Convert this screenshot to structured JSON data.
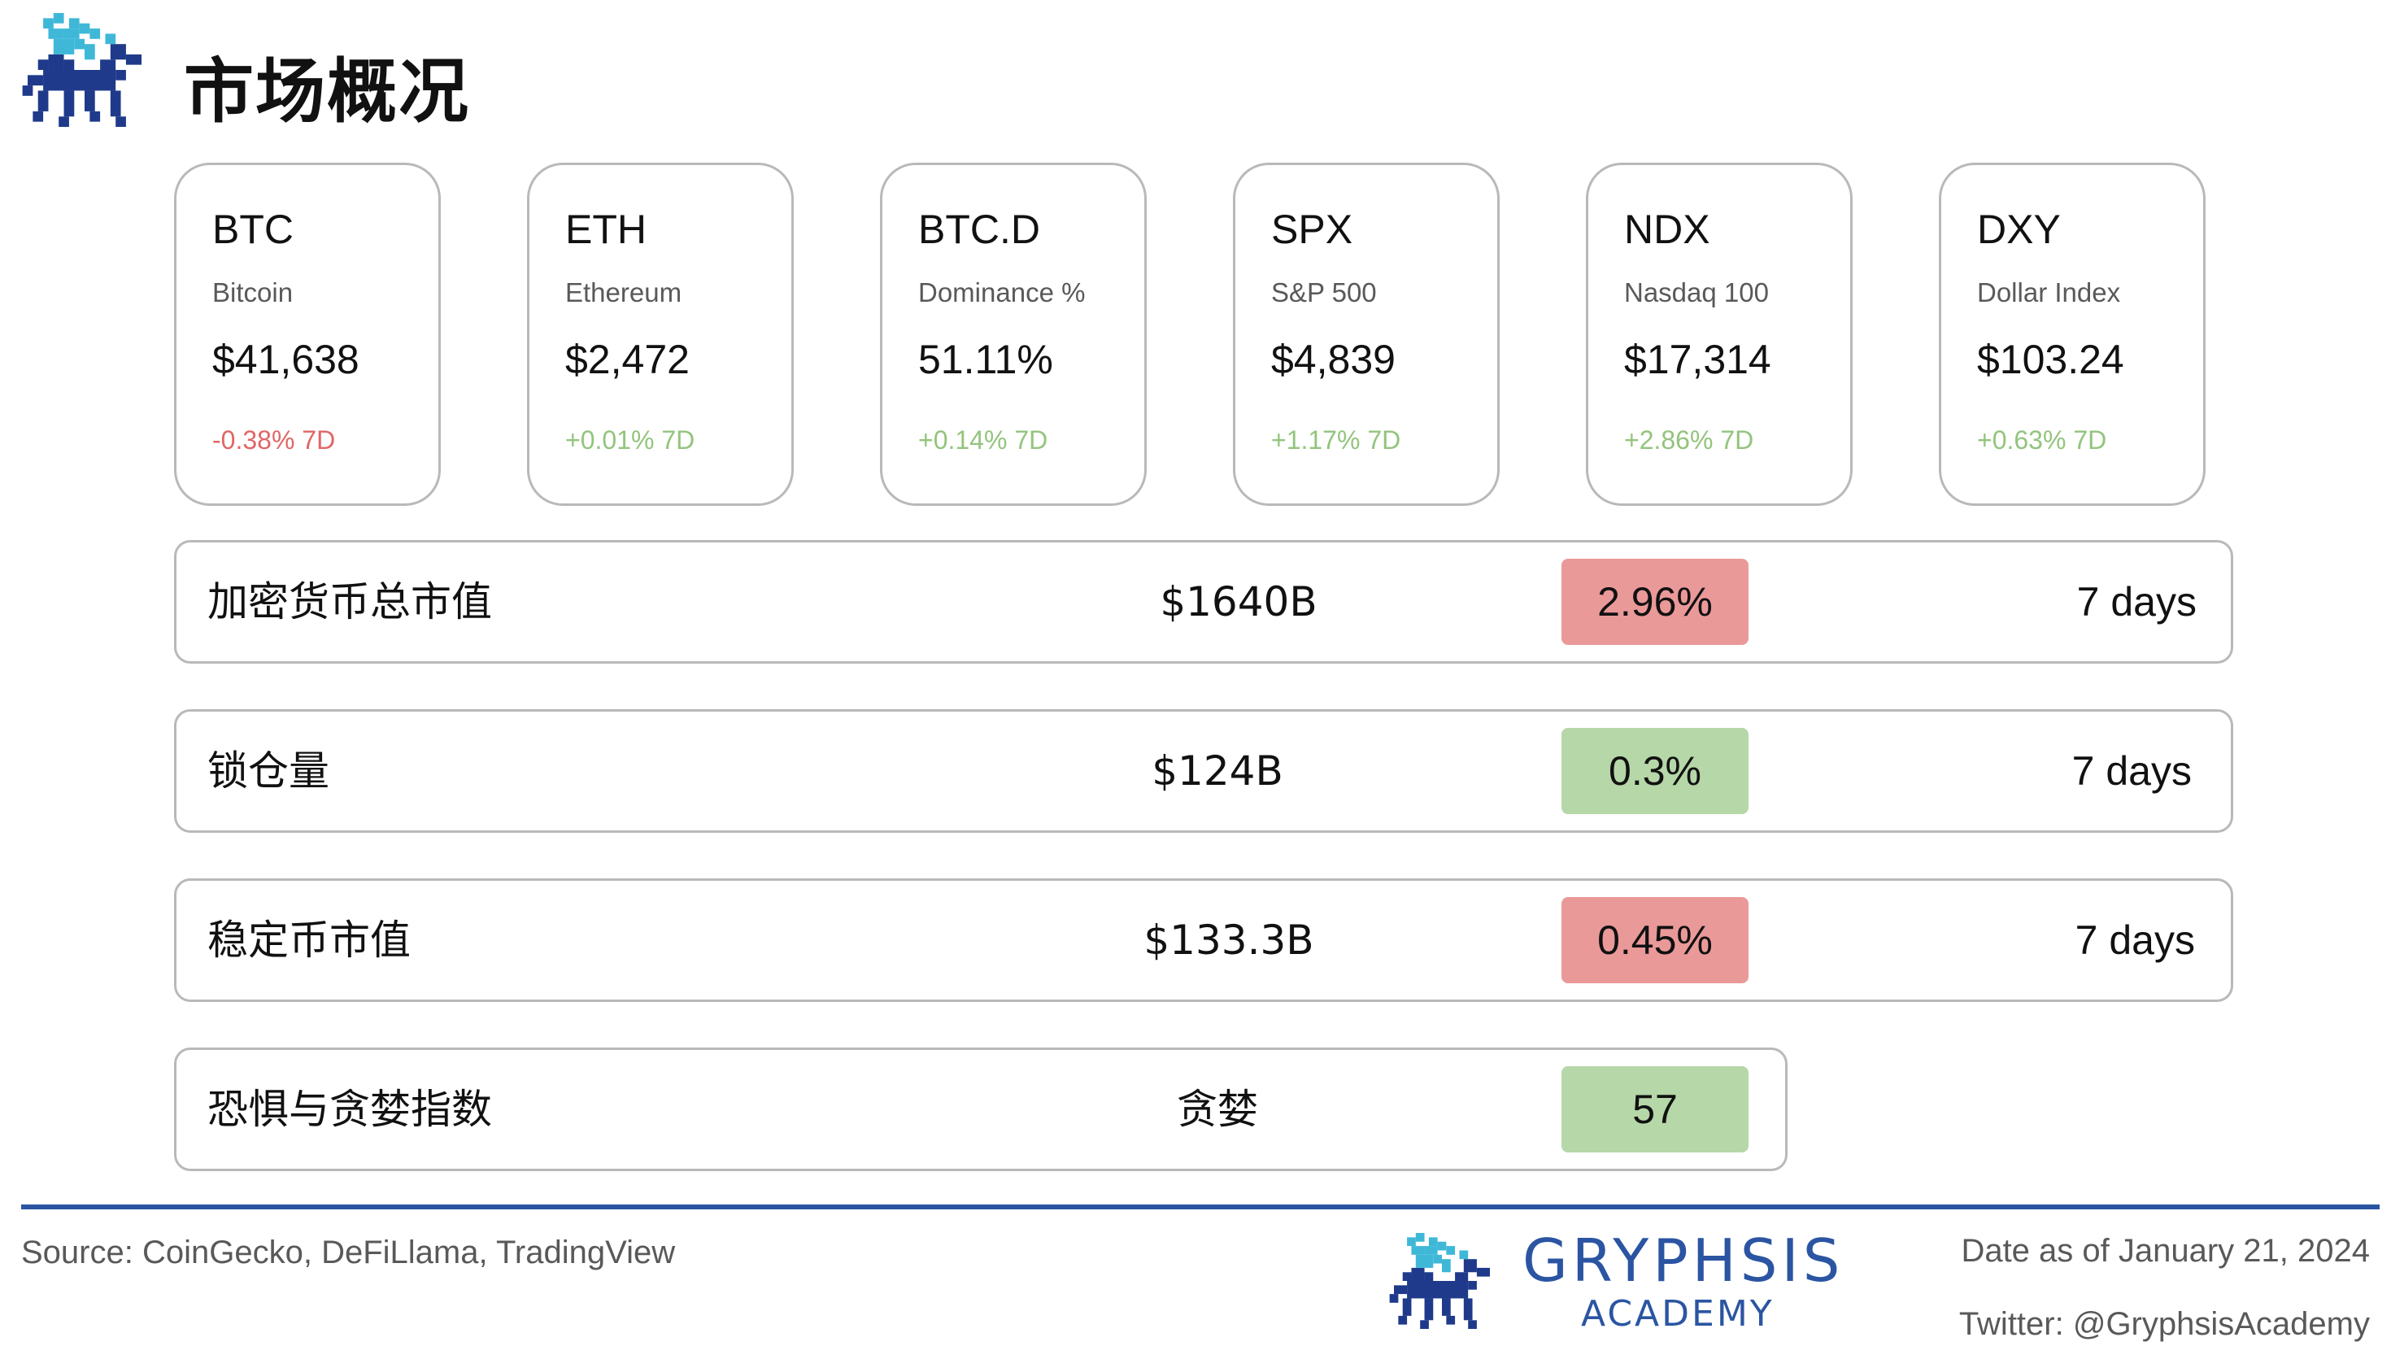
{
  "header": {
    "title": "市场概况",
    "logo_icon": "gryphon-pixel-logo-icon"
  },
  "colors": {
    "negative": "#e06666",
    "positive": "#93c47d",
    "badge_red": "#ea9999",
    "badge_green": "#b6d7a8",
    "brand_blue": "#2b55a2",
    "logo_cyan": "#3fb8d8",
    "logo_navy": "#1f3a8a"
  },
  "cards": [
    {
      "symbol": "BTC",
      "name": "Bitcoin",
      "price": "$41,638",
      "change": "-0.38% 7D",
      "trend": "negative"
    },
    {
      "symbol": "ETH",
      "name": "Ethereum",
      "price": "$2,472",
      "change": "+0.01% 7D",
      "trend": "positive"
    },
    {
      "symbol": "BTC.D",
      "name": "Dominance %",
      "price": "51.11%",
      "change": "+0.14% 7D",
      "trend": "positive"
    },
    {
      "symbol": "SPX",
      "name": "S&P 500",
      "price": "$4,839",
      "change": "+1.17% 7D",
      "trend": "positive"
    },
    {
      "symbol": "NDX",
      "name": "Nasdaq 100",
      "price": "$17,314",
      "change": "+2.86% 7D",
      "trend": "positive"
    },
    {
      "symbol": "DXY",
      "name": "Dollar Index",
      "price": "$103.24",
      "change": "+0.63% 7D",
      "trend": "positive"
    }
  ],
  "metrics": [
    {
      "label": "加密货币总市值",
      "value": "$1640B",
      "change": "2.96%",
      "status": "red",
      "period": "7 days"
    },
    {
      "label": "锁仓量",
      "value": "$124B",
      "change": "0.3%",
      "status": "green",
      "period": "7 days"
    },
    {
      "label": "稳定币市值",
      "value": "$133.3B",
      "change": "0.45%",
      "status": "red",
      "period": "7 days"
    },
    {
      "label": "恐惧与贪婪指数",
      "value": "贪婪",
      "change": "57",
      "status": "green",
      "period": ""
    }
  ],
  "footer": {
    "source": "Source: CoinGecko, DeFiLlama, TradingView",
    "brand_name": "GRYPHSIS",
    "brand_sub": "ACADEMY",
    "date": "Date as of January 21, 2024",
    "twitter": "Twitter: @GryphsisAcademy",
    "logo_icon": "gryphon-pixel-logo-icon"
  }
}
